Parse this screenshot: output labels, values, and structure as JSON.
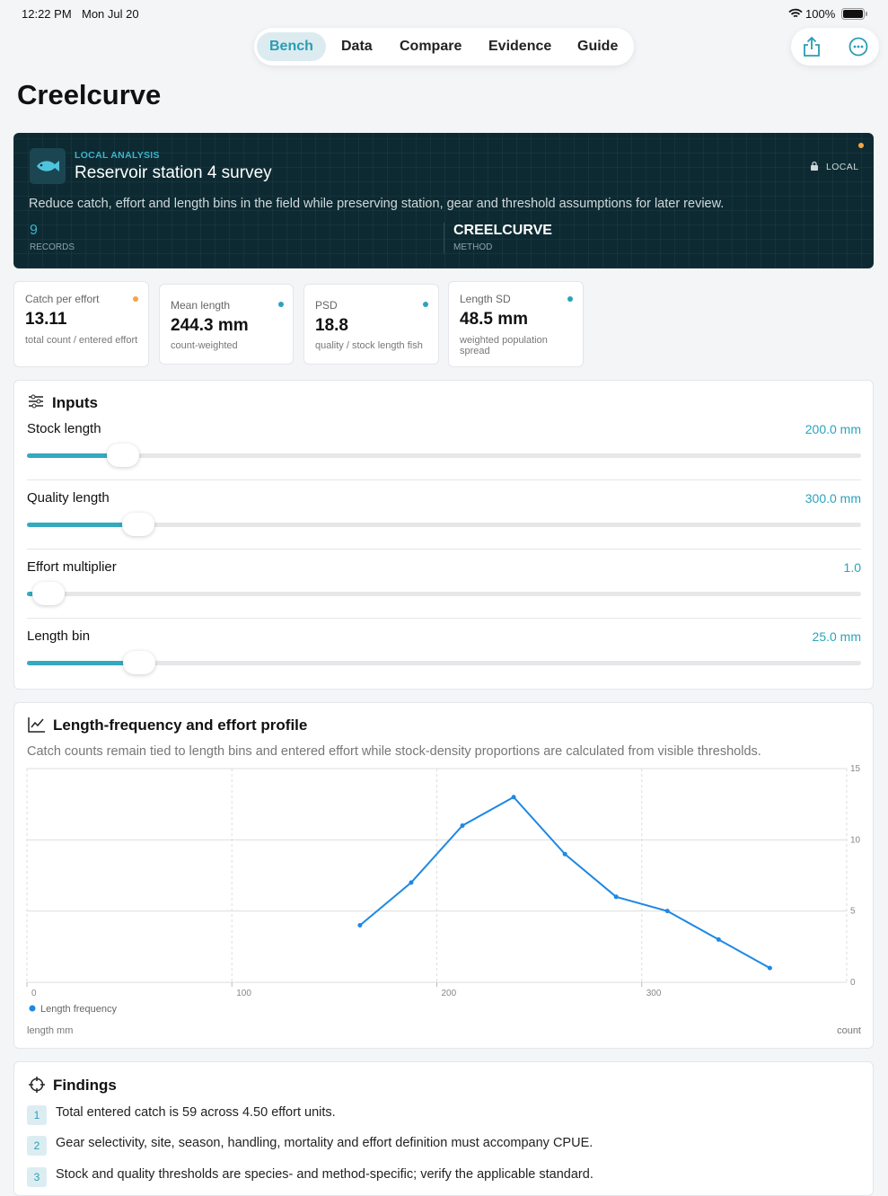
{
  "status_bar": {
    "time": "12:22 PM",
    "date": "Mon Jul 20",
    "battery": "100%"
  },
  "nav": {
    "tabs": [
      "Bench",
      "Data",
      "Compare",
      "Evidence",
      "Guide"
    ]
  },
  "page_title": "Creelcurve",
  "hero": {
    "eyebrow": "LOCAL ANALYSIS",
    "title": "Reservoir station 4 survey",
    "badge": "LOCAL",
    "description": "Reduce catch, effort and length bins in the field while preserving station, gear and threshold assumptions for later review.",
    "stats": [
      {
        "value": "9",
        "label": "RECORDS"
      },
      {
        "value": "CREELCURVE",
        "label": "METHOD"
      }
    ]
  },
  "metrics": [
    {
      "label": "Catch per effort",
      "value": "13.11",
      "note": "total count / entered effort"
    },
    {
      "label": "Mean length",
      "value": "244.3 mm",
      "note": "count-weighted"
    },
    {
      "label": "PSD",
      "value": "18.8",
      "note": "quality / stock length fish"
    },
    {
      "label": "Length SD",
      "value": "48.5 mm",
      "note": "weighted population spread"
    }
  ],
  "inputs": {
    "title": "Inputs",
    "sliders": [
      {
        "label": "Stock length",
        "value": "200.0 mm"
      },
      {
        "label": "Quality length",
        "value": "300.0 mm"
      },
      {
        "label": "Effort multiplier",
        "value": "1.0"
      },
      {
        "label": "Length bin",
        "value": "25.0 mm"
      }
    ]
  },
  "chart_data": {
    "type": "line",
    "title": "Length-frequency and effort profile",
    "subtitle": "Catch counts remain tied to length bins and entered effort while stock-density proportions are calculated from visible thresholds.",
    "x_label": "length mm",
    "y_label": "count",
    "x": [
      162.5,
      187.5,
      212.5,
      237.5,
      262.5,
      287.5,
      312.5,
      337.5,
      362.5
    ],
    "series": [
      {
        "name": "Length frequency",
        "color": "#1e88e5",
        "values": [
          4,
          7,
          11,
          13,
          9,
          6,
          5,
          3,
          1
        ]
      }
    ],
    "xlim": [
      0,
      400
    ],
    "xticks": [
      0,
      100,
      200,
      300
    ],
    "ylim": [
      0,
      15
    ],
    "yticks": [
      0,
      5,
      10,
      15
    ],
    "grid": true,
    "legend": "bottom-left"
  },
  "findings": {
    "title": "Findings",
    "items": [
      {
        "index": "1",
        "text": "Total entered catch is 59 across 4.50 effort units."
      },
      {
        "index": "2",
        "text": "Gear selectivity, site, season, handling, mortality and effort definition must accompany CPUE."
      },
      {
        "index": "3",
        "text": "Stock and quality thresholds are species- and method-specific; verify the applicable standard."
      }
    ]
  }
}
